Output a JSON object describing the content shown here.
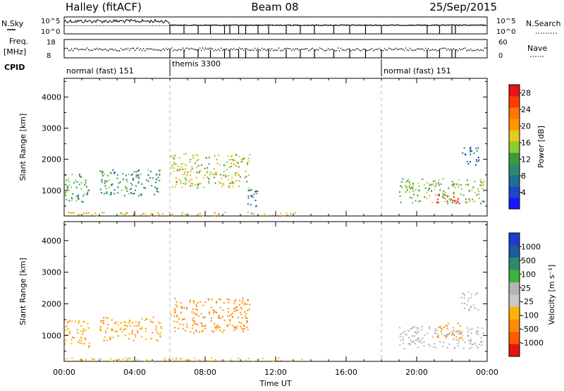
{
  "chart_data": [
    {
      "type": "summary",
      "name": "header",
      "title_left": "Halley (fitACF)",
      "title_center": "Beam 08",
      "title_right": "25/Sep/2015",
      "nsky_label": "N.Sky",
      "nsearch_label": "N.Search",
      "freq_label": "Freq.",
      "freq_unit": "[MHz]",
      "nave_label": "Nave",
      "cpid_label": "CPID",
      "noise_left_ticks": [
        "10^5",
        "10^0"
      ],
      "noise_right_ticks": [
        "10^5",
        "10^0"
      ],
      "freq_left_ticks": [
        "18",
        "8"
      ],
      "freq_right_ticks": [
        "60",
        "0"
      ],
      "cpid_segments": [
        {
          "start_hour": 0,
          "end_hour": 6,
          "label": "normal (fast) 151"
        },
        {
          "start_hour": 6,
          "end_hour": 18,
          "label": "themis 3300"
        },
        {
          "start_hour": 18,
          "end_hour": 24,
          "label": "normal (fast) 151"
        }
      ],
      "channel_drops_hours": [
        6.0,
        6.8,
        7.6,
        8.3,
        9.1,
        9.4,
        9.9,
        10.3,
        11.0,
        11.6,
        12.6,
        13.4,
        14.2,
        15.3,
        16.2,
        17.1,
        18.0,
        20.6,
        21.3,
        22.0,
        22.2
      ]
    },
    {
      "type": "heatmap",
      "name": "power",
      "ylabel": "Slant Range [km]",
      "yticks": [
        1000,
        2000,
        3000,
        4000
      ],
      "ylim": [
        180,
        4600
      ],
      "colorbar_label": "Power [dB]",
      "colorbar_ticks": [
        4,
        8,
        12,
        16,
        20,
        24,
        28
      ],
      "colorbar_range": [
        0,
        30
      ],
      "colors": [
        "#1616ff",
        "#1e46c8",
        "#1e6e96",
        "#2e8a6a",
        "#3c9a3c",
        "#8ccd32",
        "#e6c81e",
        "#ff9600",
        "#ff7800",
        "#ff3c00",
        "#e61414"
      ],
      "patches": [
        {
          "t0": 0.0,
          "t1": 1.4,
          "r0": 650,
          "r1": 1600,
          "value": 12
        },
        {
          "t0": 2.0,
          "t1": 5.5,
          "r0": 850,
          "r1": 1700,
          "value": 10
        },
        {
          "t0": 6.0,
          "t1": 10.5,
          "r0": 1100,
          "r1": 2200,
          "value": 16
        },
        {
          "t0": 10.2,
          "t1": 11.0,
          "r0": 500,
          "r1": 1100,
          "value": 8
        },
        {
          "t0": 19.0,
          "t1": 23.8,
          "r0": 600,
          "r1": 1400,
          "value": 14
        },
        {
          "t0": 21.0,
          "t1": 22.4,
          "r0": 600,
          "r1": 900,
          "value": 26
        },
        {
          "t0": 22.5,
          "t1": 23.5,
          "r0": 1800,
          "r1": 2400,
          "value": 6
        },
        {
          "t0": 0.0,
          "t1": 13.5,
          "r0": 200,
          "r1": 320,
          "value": 18
        }
      ]
    },
    {
      "type": "heatmap",
      "name": "velocity",
      "xlabel": "Time UT",
      "ylabel": "Slant Range [km]",
      "xticks": [
        "00:00",
        "04:00",
        "08:00",
        "12:00",
        "16:00",
        "20:00",
        "00:00"
      ],
      "yticks": [
        1000,
        2000,
        3000,
        4000
      ],
      "ylim": [
        180,
        4600
      ],
      "colorbar_label": "Velocity [m s⁻¹]",
      "colorbar_ticks": [
        "1000",
        "500",
        "100",
        "25",
        "-25",
        "-100",
        "-500",
        "-1000"
      ],
      "colors": [
        "#1e3cc8",
        "#1e5aa0",
        "#2e8a6a",
        "#3cb43c",
        "#b4b4b4",
        "#c8c8c8",
        "#ffb400",
        "#ff8c00",
        "#ff5a00",
        "#e61414"
      ],
      "patches": [
        {
          "t0": 0.0,
          "t1": 1.4,
          "r0": 650,
          "r1": 1500,
          "value": -100
        },
        {
          "t0": 2.0,
          "t1": 5.5,
          "r0": 850,
          "r1": 1600,
          "value": -100
        },
        {
          "t0": 6.0,
          "t1": 10.5,
          "r0": 1100,
          "r1": 2200,
          "value": -300
        },
        {
          "t0": 19.0,
          "t1": 23.8,
          "r0": 600,
          "r1": 1300,
          "value": 0
        },
        {
          "t0": 21.0,
          "t1": 22.5,
          "r0": 900,
          "r1": 1400,
          "value": -300
        },
        {
          "t0": 22.5,
          "t1": 23.5,
          "r0": 1800,
          "r1": 2400,
          "value": 0
        },
        {
          "t0": 0.0,
          "t1": 13.5,
          "r0": 200,
          "r1": 320,
          "value": -60
        }
      ]
    }
  ]
}
